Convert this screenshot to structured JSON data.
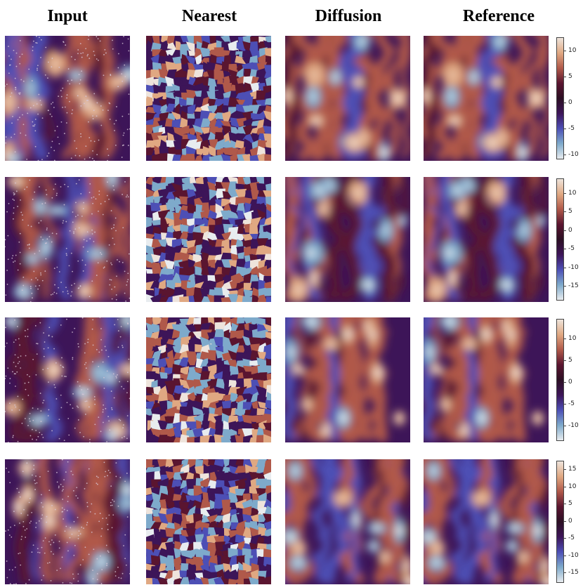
{
  "columns": [
    "Input",
    "Nearest",
    "Diffusion",
    "Reference"
  ],
  "colormap": {
    "name": "twilight-shifted",
    "stops": [
      "#e8ecef",
      "#7eaacb",
      "#4d4fb5",
      "#3d1558",
      "#2c0f24",
      "#5a1530",
      "#b0594a",
      "#e0a882",
      "#eee4dc"
    ]
  },
  "rows": [
    {
      "colorbar": {
        "min": -11,
        "max": 12.5,
        "ticks": [
          10,
          5,
          0,
          -5,
          -10
        ]
      }
    },
    {
      "colorbar": {
        "min": -19,
        "max": 14,
        "ticks": [
          10,
          5,
          0,
          -5,
          -10,
          -15
        ]
      }
    },
    {
      "colorbar": {
        "min": -13.5,
        "max": 14.5,
        "ticks": [
          10,
          5,
          0,
          -5,
          -10
        ]
      }
    },
    {
      "colorbar": {
        "min": -18,
        "max": 17.5,
        "ticks": [
          15,
          10,
          5,
          0,
          -5,
          -10,
          -15
        ]
      }
    }
  ]
}
